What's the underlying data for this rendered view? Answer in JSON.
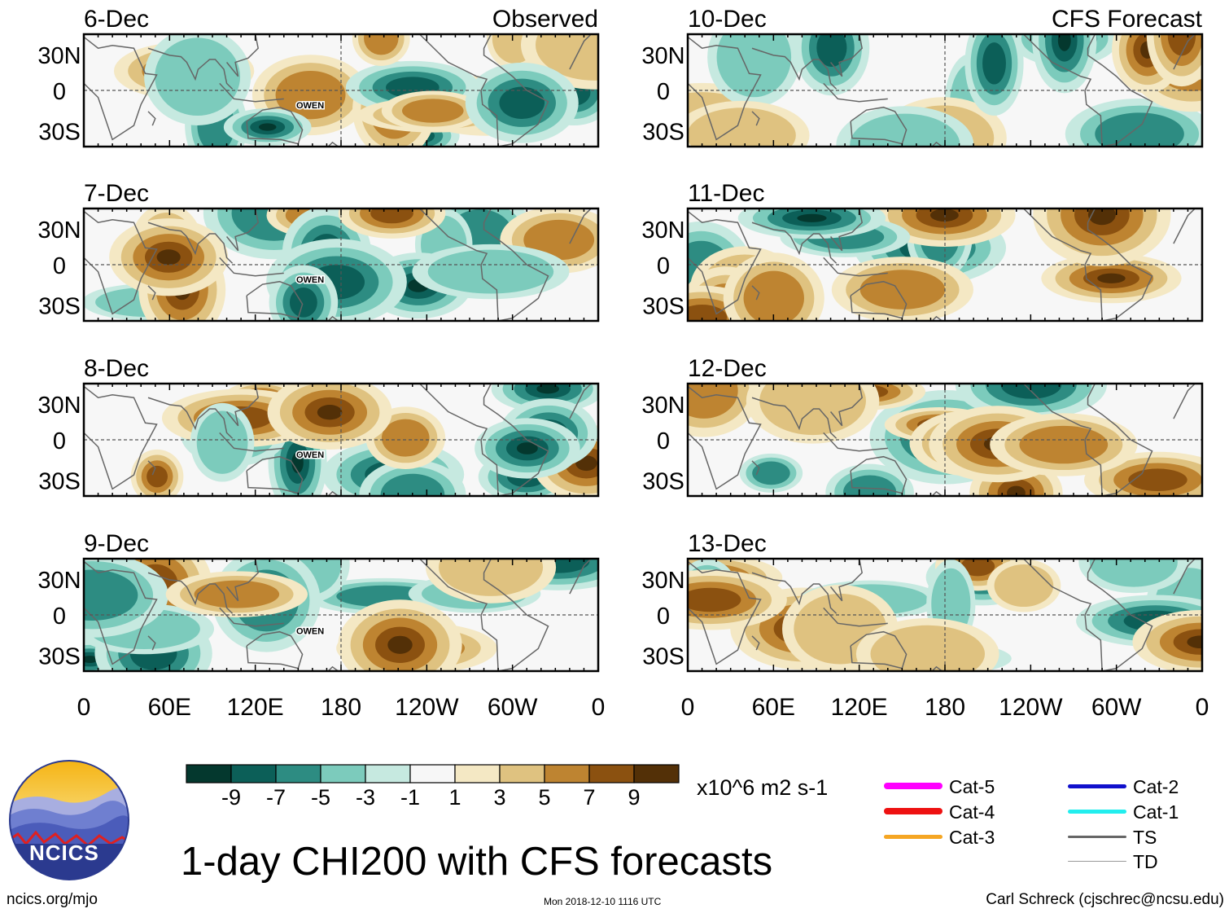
{
  "left_column_label": "Observed",
  "right_column_label": "CFS Forecast",
  "panels": [
    {
      "date": "6-Dec",
      "column": "Observed",
      "storm_label": "OWEN"
    },
    {
      "date": "7-Dec",
      "column": "Observed",
      "storm_label": "OWEN"
    },
    {
      "date": "8-Dec",
      "column": "Observed",
      "storm_label": "OWEN"
    },
    {
      "date": "9-Dec",
      "column": "Observed",
      "storm_label": "OWEN"
    },
    {
      "date": "10-Dec",
      "column": "CFS Forecast",
      "storm_label": ""
    },
    {
      "date": "11-Dec",
      "column": "CFS Forecast",
      "storm_label": ""
    },
    {
      "date": "12-Dec",
      "column": "CFS Forecast",
      "storm_label": ""
    },
    {
      "date": "13-Dec",
      "column": "CFS Forecast",
      "storm_label": ""
    }
  ],
  "lat_labels": [
    "30N",
    "0",
    "30S"
  ],
  "lon_labels": [
    "0",
    "60E",
    "120E",
    "180",
    "120W",
    "60W",
    "0"
  ],
  "colorbar": {
    "colors": [
      "#04382e",
      "#0c5f58",
      "#2d8c82",
      "#7ccbbc",
      "#c6e9e0",
      "#f7f7f7",
      "#f4e8c4",
      "#dfc280",
      "#be8431",
      "#8b5110",
      "#533007"
    ],
    "labels": [
      "-9",
      "-7",
      "-5",
      "-3",
      "-1",
      "1",
      "3",
      "5",
      "7",
      "9"
    ],
    "units": "x10^6 m2 s-1"
  },
  "legend": [
    {
      "label": "Cat-5",
      "color": "#ff00ff",
      "weight": "thick"
    },
    {
      "label": "Cat-4",
      "color": "#ee1111",
      "weight": "thick"
    },
    {
      "label": "Cat-3",
      "color": "#f5a623",
      "weight": "medium"
    },
    {
      "label": "Cat-2",
      "color": "#1010cc",
      "weight": "medium"
    },
    {
      "label": "Cat-1",
      "color": "#22eeee",
      "weight": "medium"
    },
    {
      "label": "TS",
      "color": "#666666",
      "weight": "thin"
    },
    {
      "label": "TD",
      "color": "#999999",
      "weight": "hair"
    }
  ],
  "title": "1-day CHI200 with CFS forecasts",
  "logo_text": "NCICS",
  "footer": {
    "left": "ncics.org/mjo",
    "timestamp": "Mon 2018-12-10 1116 UTC",
    "right": "Carl Schreck (cjschrec@ncsu.edu)"
  }
}
